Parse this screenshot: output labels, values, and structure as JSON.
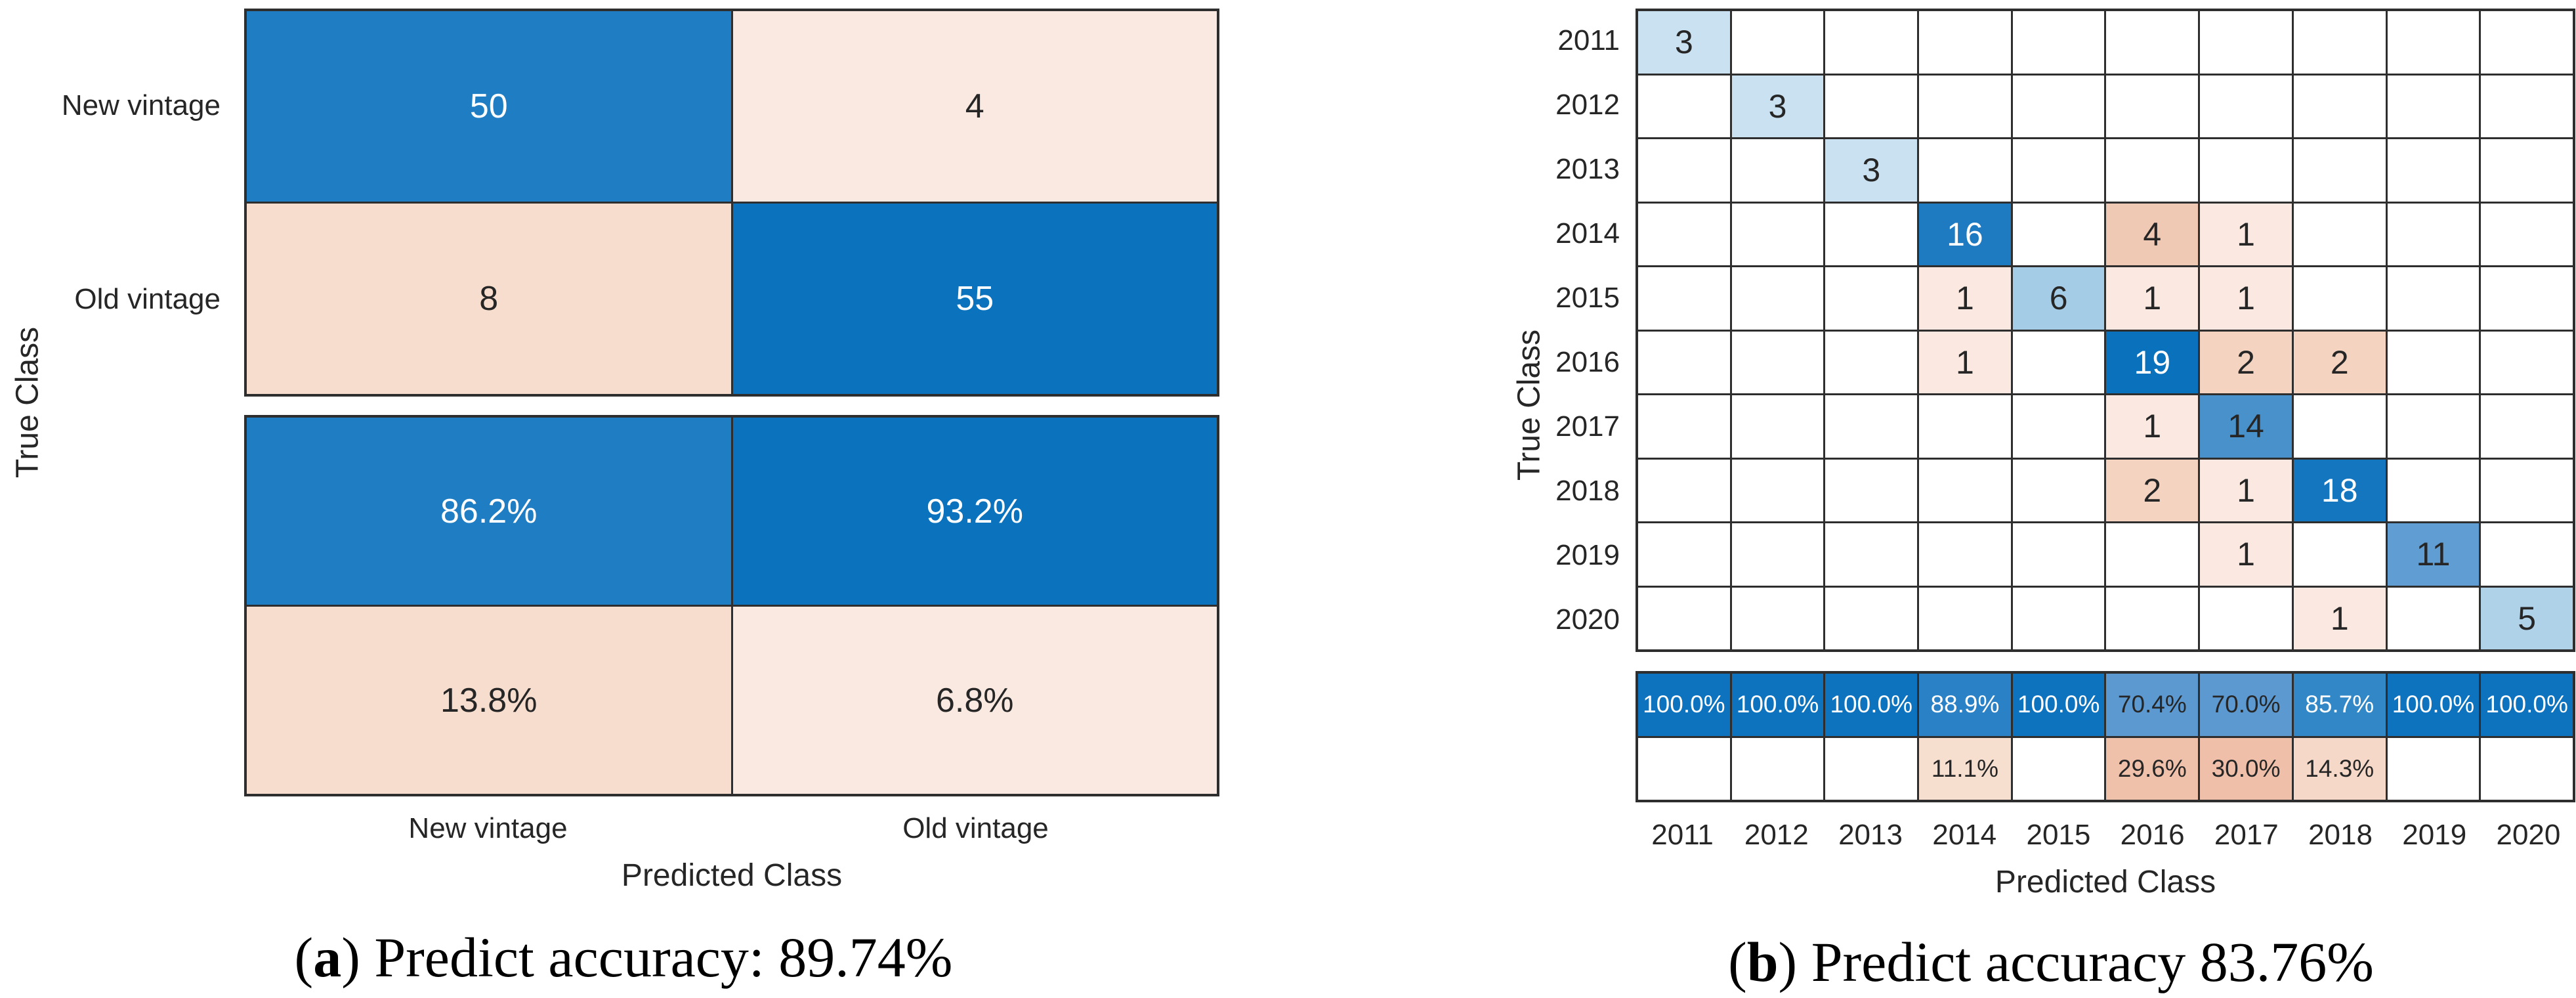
{
  "colors": {
    "diagonal_blue": "#0a72bd",
    "offdiagonal_salmon": "#f0c9b4",
    "grid_line": "#2e2e2e",
    "tick_text": "#262626",
    "cell_text_dark": "#262626",
    "cell_text_light": "#ffffff"
  },
  "chart_data": [
    {
      "id": "a",
      "type": "heatmap",
      "subtype": "confusion-matrix-with-column-summary",
      "xlabel": "Predicted Class",
      "ylabel": "True Class",
      "classes": [
        "New vintage",
        "Old vintage"
      ],
      "caption": {
        "open": "(",
        "letter": "a",
        "close": ")",
        "text": "Predict accuracy: 89.74%"
      },
      "matrix": [
        [
          {
            "v": "50",
            "bg": "#1f7dc3",
            "fg": "#ffffff"
          },
          {
            "v": "4",
            "bg": "#fae9e0",
            "fg": "#262626"
          }
        ],
        [
          {
            "v": "8",
            "bg": "#f7ddcd",
            "fg": "#262626"
          },
          {
            "v": "55",
            "bg": "#0b73be",
            "fg": "#ffffff"
          }
        ]
      ],
      "col_summary": [
        [
          {
            "v": "86.2%",
            "bg": "#1f7dc3",
            "fg": "#ffffff"
          },
          {
            "v": "93.2%",
            "bg": "#0b73be",
            "fg": "#ffffff"
          }
        ],
        [
          {
            "v": "13.8%",
            "bg": "#f7ddcd",
            "fg": "#262626"
          },
          {
            "v": "6.8%",
            "bg": "#fae9e0",
            "fg": "#262626"
          }
        ]
      ]
    },
    {
      "id": "b",
      "type": "heatmap",
      "subtype": "confusion-matrix-with-column-summary",
      "xlabel": "Predicted Class",
      "ylabel": "True Class",
      "classes": [
        "2011",
        "2012",
        "2013",
        "2014",
        "2015",
        "2016",
        "2017",
        "2018",
        "2019",
        "2020"
      ],
      "caption": {
        "open": "(",
        "letter": "b",
        "close": ")",
        "text": "Predict accuracy 83.76%"
      },
      "matrix": [
        [
          {
            "v": "3",
            "bg": "#c9e1f1",
            "fg": "#262626"
          },
          null,
          null,
          null,
          null,
          null,
          null,
          null,
          null,
          null
        ],
        [
          null,
          {
            "v": "3",
            "bg": "#c9e1f1",
            "fg": "#262626"
          },
          null,
          null,
          null,
          null,
          null,
          null,
          null,
          null
        ],
        [
          null,
          null,
          {
            "v": "3",
            "bg": "#c9e1f1",
            "fg": "#262626"
          },
          null,
          null,
          null,
          null,
          null,
          null,
          null
        ],
        [
          null,
          null,
          null,
          {
            "v": "16",
            "bg": "#1e7bc2",
            "fg": "#ffffff"
          },
          null,
          {
            "v": "4",
            "bg": "#f0c9b4",
            "fg": "#262626"
          },
          {
            "v": "1",
            "bg": "#fbe9e1",
            "fg": "#262626"
          },
          null,
          null,
          null
        ],
        [
          null,
          null,
          null,
          {
            "v": "1",
            "bg": "#fbe9e1",
            "fg": "#262626"
          },
          {
            "v": "6",
            "bg": "#a5cce6",
            "fg": "#262626"
          },
          {
            "v": "1",
            "bg": "#fbe9e1",
            "fg": "#262626"
          },
          {
            "v": "1",
            "bg": "#fbe9e1",
            "fg": "#262626"
          },
          null,
          null,
          null
        ],
        [
          null,
          null,
          null,
          {
            "v": "1",
            "bg": "#fbe9e1",
            "fg": "#262626"
          },
          null,
          {
            "v": "19",
            "bg": "#0a72bd",
            "fg": "#ffffff"
          },
          {
            "v": "2",
            "bg": "#f4d3c1",
            "fg": "#262626"
          },
          {
            "v": "2",
            "bg": "#f4d3c1",
            "fg": "#262626"
          },
          null,
          null
        ],
        [
          null,
          null,
          null,
          null,
          null,
          {
            "v": "1",
            "bg": "#fbe9e1",
            "fg": "#262626"
          },
          {
            "v": "14",
            "bg": "#4991cb",
            "fg": "#262626"
          },
          null,
          null,
          null
        ],
        [
          null,
          null,
          null,
          null,
          null,
          {
            "v": "2",
            "bg": "#f4d3c1",
            "fg": "#262626"
          },
          {
            "v": "1",
            "bg": "#fbe9e1",
            "fg": "#262626"
          },
          {
            "v": "18",
            "bg": "#1376bf",
            "fg": "#ffffff"
          },
          null,
          null
        ],
        [
          null,
          null,
          null,
          null,
          null,
          null,
          {
            "v": "1",
            "bg": "#fbe9e1",
            "fg": "#262626"
          },
          null,
          {
            "v": "11",
            "bg": "#609dd2",
            "fg": "#262626"
          },
          null
        ],
        [
          null,
          null,
          null,
          null,
          null,
          null,
          null,
          {
            "v": "1",
            "bg": "#fbe9e1",
            "fg": "#262626"
          },
          null,
          {
            "v": "5",
            "bg": "#b0d2e9",
            "fg": "#262626"
          }
        ]
      ],
      "col_summary": [
        [
          {
            "v": "100.0%",
            "bg": "#0d73be",
            "fg": "#ffffff"
          },
          {
            "v": "100.0%",
            "bg": "#0d73be",
            "fg": "#ffffff"
          },
          {
            "v": "100.0%",
            "bg": "#0d73be",
            "fg": "#ffffff"
          },
          {
            "v": "88.9%",
            "bg": "#2a81c5",
            "fg": "#ffffff"
          },
          {
            "v": "100.0%",
            "bg": "#0d73be",
            "fg": "#ffffff"
          },
          {
            "v": "70.4%",
            "bg": "#5b99d0",
            "fg": "#262626"
          },
          {
            "v": "70.0%",
            "bg": "#5b99d0",
            "fg": "#262626"
          },
          {
            "v": "85.7%",
            "bg": "#3287c7",
            "fg": "#ffffff"
          },
          {
            "v": "100.0%",
            "bg": "#0d73be",
            "fg": "#ffffff"
          },
          {
            "v": "100.0%",
            "bg": "#0d73be",
            "fg": "#ffffff"
          }
        ],
        [
          null,
          null,
          null,
          {
            "v": "11.1%",
            "bg": "#f7dfd0",
            "fg": "#262626"
          },
          null,
          {
            "v": "29.6%",
            "bg": "#efc0aa",
            "fg": "#262626"
          },
          {
            "v": "30.0%",
            "bg": "#efbfa9",
            "fg": "#262626"
          },
          {
            "v": "14.3%",
            "bg": "#f5d8c7",
            "fg": "#262626"
          },
          null,
          null
        ]
      ]
    }
  ]
}
